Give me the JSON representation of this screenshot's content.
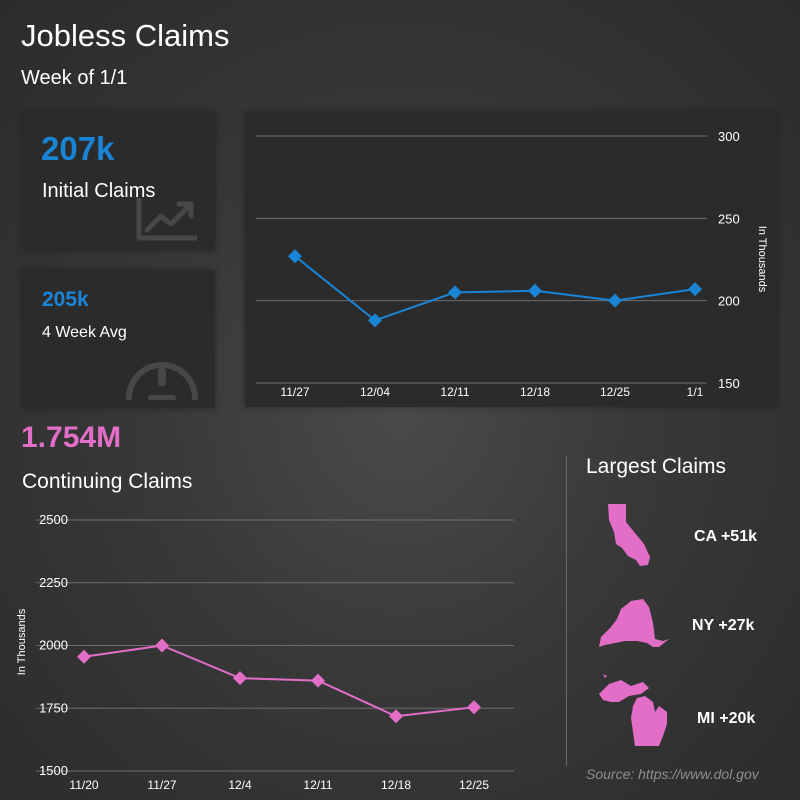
{
  "header": {
    "title": "Jobless Claims",
    "subtitle": "Week of 1/1"
  },
  "initial_card": {
    "value": "207k",
    "label": "Initial Claims",
    "icon": "trend-chart-icon"
  },
  "avg_card": {
    "value": "205k",
    "label": "4 Week Avg",
    "icon": "gauge-icon"
  },
  "continuing": {
    "value": "1.754M",
    "label": "Continuing Claims"
  },
  "largest": {
    "title": "Largest Claims",
    "states": [
      {
        "code": "CA",
        "label": "CA +51k",
        "icon": "california-map-icon"
      },
      {
        "code": "NY",
        "label": "NY +27k",
        "icon": "new-york-map-icon"
      },
      {
        "code": "MI",
        "label": "MI +20k",
        "icon": "michigan-map-icon"
      }
    ]
  },
  "source": "Source: https://www.dol.gov",
  "colors": {
    "blue": "#1a85d6",
    "pink": "#e26ec8",
    "card": "#2b2b2b"
  },
  "chart_data": [
    {
      "type": "line",
      "name": "initial-claims-chart",
      "categories": [
        "11/27",
        "12/04",
        "12/11",
        "12/18",
        "12/25",
        "1/1"
      ],
      "series": [
        {
          "values": [
            227,
            188,
            205,
            206,
            200,
            207
          ]
        }
      ],
      "ylabel": "In Thousands",
      "ylim": [
        150,
        300
      ],
      "yticks": [
        150,
        200,
        250,
        300
      ],
      "grid": true,
      "y_axis_side": "right",
      "color": "#1a85d6",
      "marker": "diamond"
    },
    {
      "type": "line",
      "name": "continuing-claims-chart",
      "categories": [
        "11/20",
        "11/27",
        "12/4",
        "12/11",
        "12/18",
        "12/25"
      ],
      "series": [
        {
          "values": [
            1955,
            2000,
            1870,
            1860,
            1718,
            1754
          ]
        }
      ],
      "ylabel": "In Thousands",
      "ylim": [
        1500,
        2500
      ],
      "yticks": [
        1500,
        1750,
        2000,
        2250,
        2500
      ],
      "grid": true,
      "y_axis_side": "left",
      "color": "#e26ec8",
      "marker": "diamond"
    }
  ]
}
